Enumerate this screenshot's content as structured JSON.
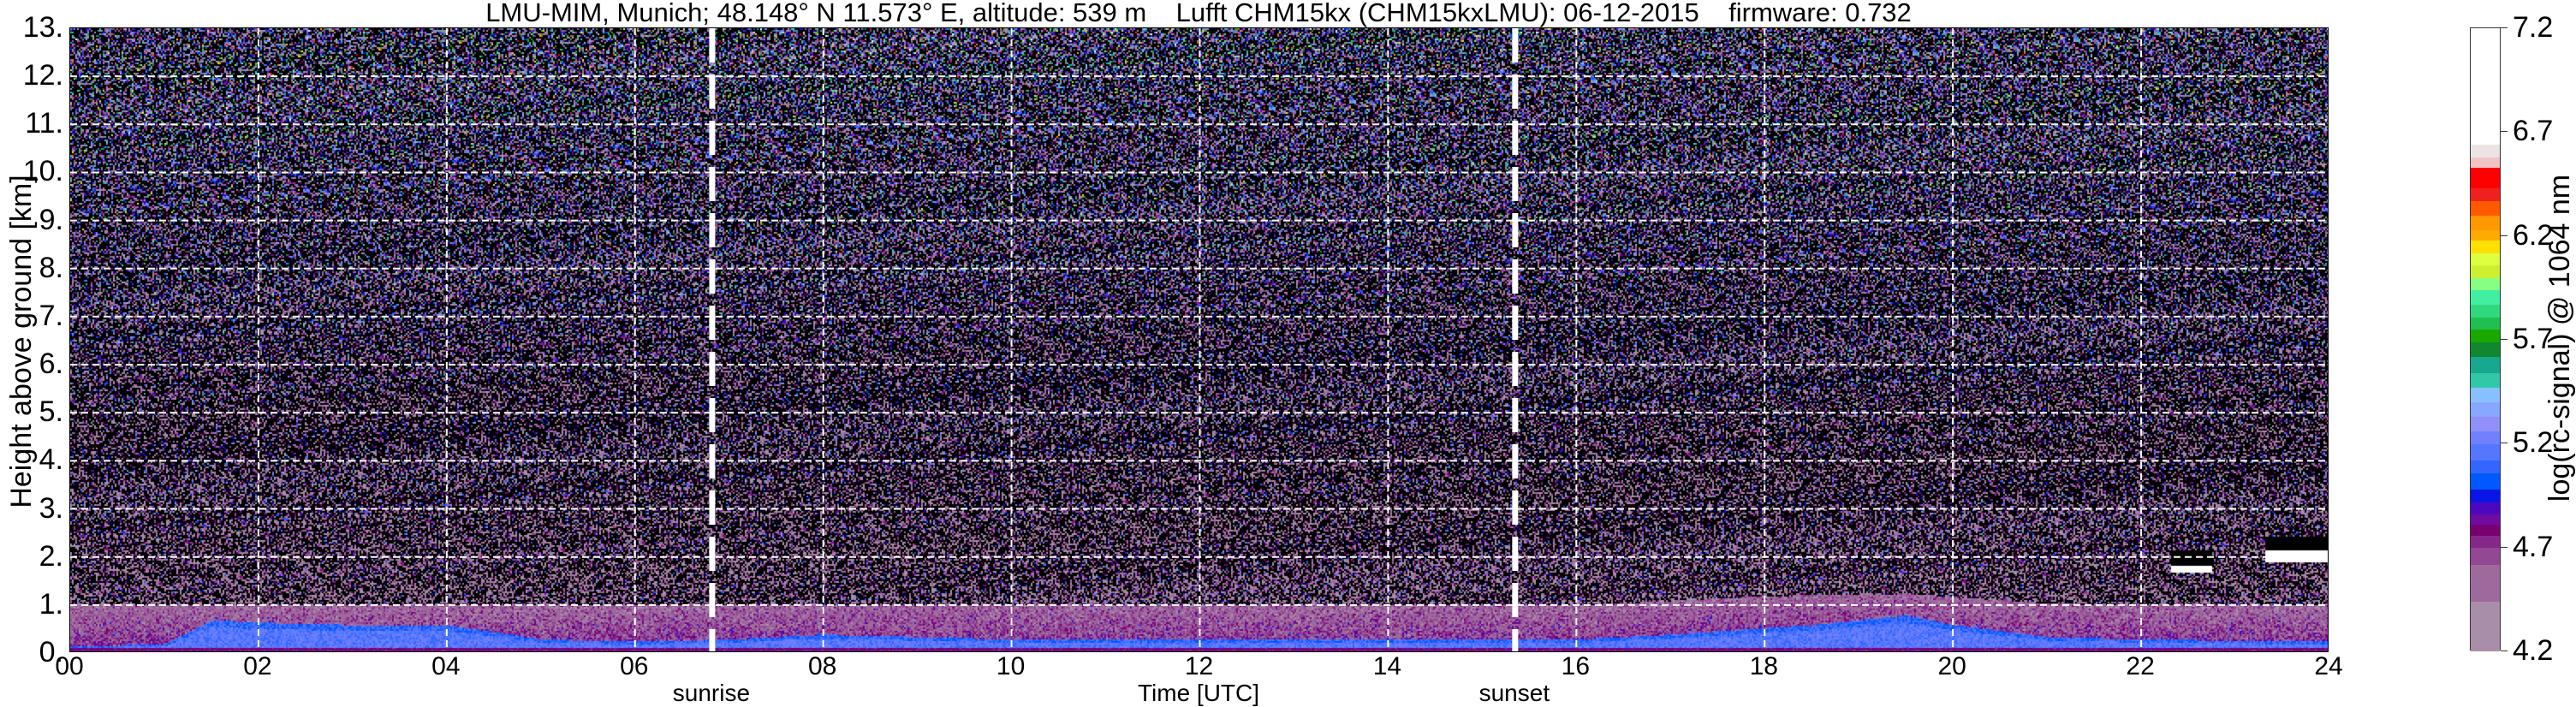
{
  "chart_data": {
    "type": "heatmap",
    "title": "LMU-MIM, Munich; 48.148° N 11.573° E, altitude: 539 m    Lufft CHM15kx (CHM15kxLMU): 06-12-2015    firmware: 0.732",
    "xlabel": "Time [UTC]",
    "ylabel": "Height above ground [km]",
    "xlim": [
      0,
      24
    ],
    "ylim": [
      0,
      13
    ],
    "xticks": [
      "00",
      "02",
      "04",
      "06",
      "08",
      "10",
      "12",
      "14",
      "16",
      "18",
      "20",
      "22",
      "24"
    ],
    "xtick_values": [
      0,
      2,
      4,
      6,
      8,
      10,
      12,
      14,
      16,
      18,
      20,
      22,
      24
    ],
    "yticks": [
      "0.",
      "1.",
      "2.",
      "3.",
      "4.",
      "5.",
      "6.",
      "7.",
      "8.",
      "9.",
      "10.",
      "11.",
      "12.",
      "13."
    ],
    "ytick_values": [
      0,
      1,
      2,
      3,
      4,
      5,
      6,
      7,
      8,
      9,
      10,
      11,
      12,
      13
    ],
    "grid": true,
    "annotations": [
      {
        "label": "sunrise",
        "x": 6.82,
        "style": "white thick dashed vertical line"
      },
      {
        "label": "sunset",
        "x": 15.35,
        "style": "white thick dashed vertical line"
      }
    ],
    "colorbar": {
      "label": "log(rc-signal) @ 1064 nm",
      "range": [
        4.2,
        7.2
      ],
      "ticks": [
        "4.2",
        "4.7",
        "5.2",
        "5.7",
        "6.2",
        "6.7",
        "7.2"
      ],
      "tick_values": [
        4.2,
        4.7,
        5.2,
        5.7,
        6.2,
        6.7,
        7.2
      ],
      "below_range_color": "#000000",
      "bands": [
        [
          4.2,
          4.44,
          "#a88ea8"
        ],
        [
          4.44,
          4.62,
          "#9e6a9e"
        ],
        [
          4.62,
          4.7,
          "#934893"
        ],
        [
          4.7,
          4.76,
          "#86288a"
        ],
        [
          4.76,
          4.81,
          "#780070"
        ],
        [
          4.81,
          4.86,
          "#700aa0"
        ],
        [
          4.86,
          4.92,
          "#4c08c0"
        ],
        [
          4.92,
          4.98,
          "#0a14e6"
        ],
        [
          4.98,
          5.06,
          "#0058ff"
        ],
        [
          5.06,
          5.12,
          "#3366ff"
        ],
        [
          5.12,
          5.2,
          "#5577ff"
        ],
        [
          5.2,
          5.26,
          "#7080ff"
        ],
        [
          5.26,
          5.33,
          "#9090f8"
        ],
        [
          5.33,
          5.4,
          "#88a8ff"
        ],
        [
          5.4,
          5.47,
          "#88c0ff"
        ],
        [
          5.47,
          5.54,
          "#30c8a8"
        ],
        [
          5.54,
          5.62,
          "#18a890"
        ],
        [
          5.62,
          5.69,
          "#108830"
        ],
        [
          5.69,
          5.75,
          "#18a800"
        ],
        [
          5.75,
          5.81,
          "#20c050"
        ],
        [
          5.81,
          5.87,
          "#30d880"
        ],
        [
          5.87,
          5.94,
          "#40f0a0"
        ],
        [
          5.94,
          6.0,
          "#88ff80"
        ],
        [
          6.0,
          6.06,
          "#ccf030"
        ],
        [
          6.06,
          6.12,
          "#ddff40"
        ],
        [
          6.12,
          6.18,
          "#ffe000"
        ],
        [
          6.18,
          6.23,
          "#ffaa00"
        ],
        [
          6.23,
          6.3,
          "#ff9900"
        ],
        [
          6.3,
          6.37,
          "#ff5a00"
        ],
        [
          6.37,
          6.43,
          "#f02020"
        ],
        [
          6.43,
          6.53,
          "#ff0000"
        ],
        [
          6.53,
          6.58,
          "#f0c4c4"
        ],
        [
          6.58,
          6.64,
          "#ece4e4"
        ],
        [
          6.64,
          7.2,
          "#ffffff"
        ]
      ]
    },
    "features": {
      "aerosol_layer_top_km": {
        "time_h": [
          0,
          2,
          4,
          6,
          8,
          10,
          12,
          14,
          16,
          18,
          19.5,
          21,
          22,
          24
        ],
        "height_km": [
          1.0,
          1.0,
          1.0,
          1.0,
          1.0,
          1.0,
          1.0,
          1.0,
          1.0,
          1.2,
          1.25,
          1.05,
          1.0,
          1.0
        ]
      },
      "strong_layer_top_km": {
        "time_h": [
          0,
          1,
          1.5,
          2,
          3,
          4,
          5,
          6,
          7,
          8,
          10,
          12,
          14,
          16,
          17,
          18.5,
          19.5,
          20,
          21,
          22,
          24
        ],
        "height_km": [
          0.15,
          0.2,
          0.7,
          0.65,
          0.6,
          0.6,
          0.3,
          0.25,
          0.3,
          0.4,
          0.3,
          0.3,
          0.3,
          0.3,
          0.4,
          0.6,
          0.8,
          0.6,
          0.35,
          0.3,
          0.25
        ]
      },
      "clouds": [
        {
          "time_h": [
            22.3,
            22.75
          ],
          "base_km": 1.7,
          "top_km": 1.85
        },
        {
          "time_h": [
            23.3,
            24.0
          ],
          "base_km": 1.9,
          "top_km": 2.15
        }
      ]
    }
  }
}
